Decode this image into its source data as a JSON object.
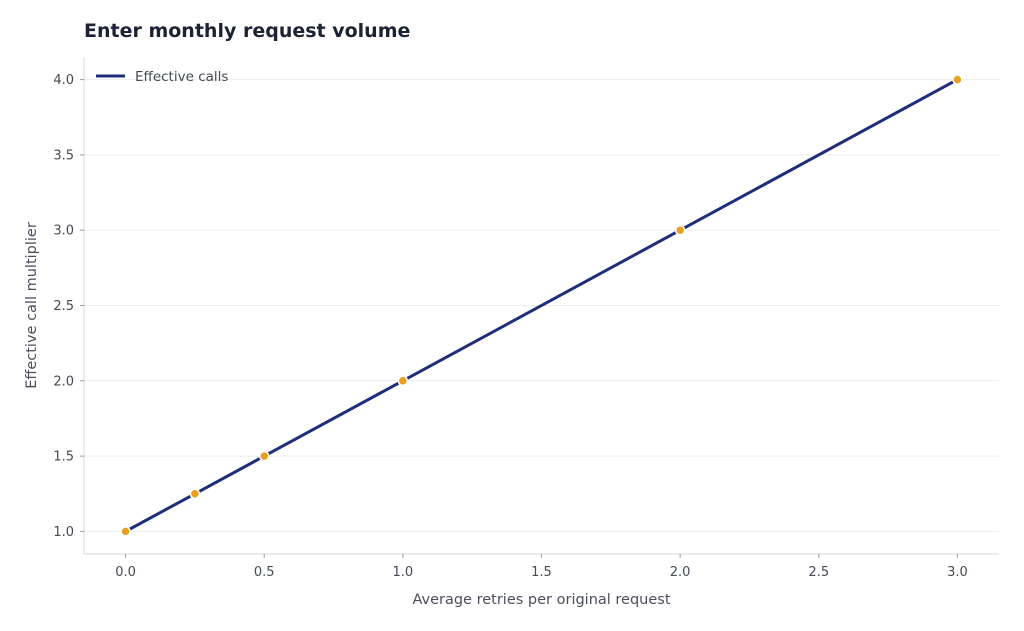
{
  "chart_data": {
    "type": "line",
    "title": "Enter monthly request volume",
    "xlabel": "Average retries per original request",
    "ylabel": "Effective call multiplier",
    "xlim": [
      -0.15,
      3.15
    ],
    "ylim": [
      0.85,
      4.15
    ],
    "x_ticks": [
      0.0,
      0.5,
      1.0,
      1.5,
      2.0,
      2.5,
      3.0
    ],
    "x_tick_labels": [
      "0.0",
      "0.5",
      "1.0",
      "1.5",
      "2.0",
      "2.5",
      "3.0"
    ],
    "y_ticks": [
      1.0,
      1.5,
      2.0,
      2.5,
      3.0,
      3.5,
      4.0
    ],
    "y_tick_labels": [
      "1.0",
      "1.5",
      "2.0",
      "2.5",
      "3.0",
      "3.5",
      "4.0"
    ],
    "grid": "horizontal",
    "legend_position": "top-left",
    "series": [
      {
        "name": "Effective calls",
        "line_color": "#1f2d7a",
        "marker_color": "#e8a020",
        "x": [
          0.0,
          0.25,
          0.5,
          1.0,
          2.0,
          3.0
        ],
        "y": [
          1.0,
          1.25,
          1.5,
          2.0,
          3.0,
          4.0
        ]
      }
    ]
  }
}
